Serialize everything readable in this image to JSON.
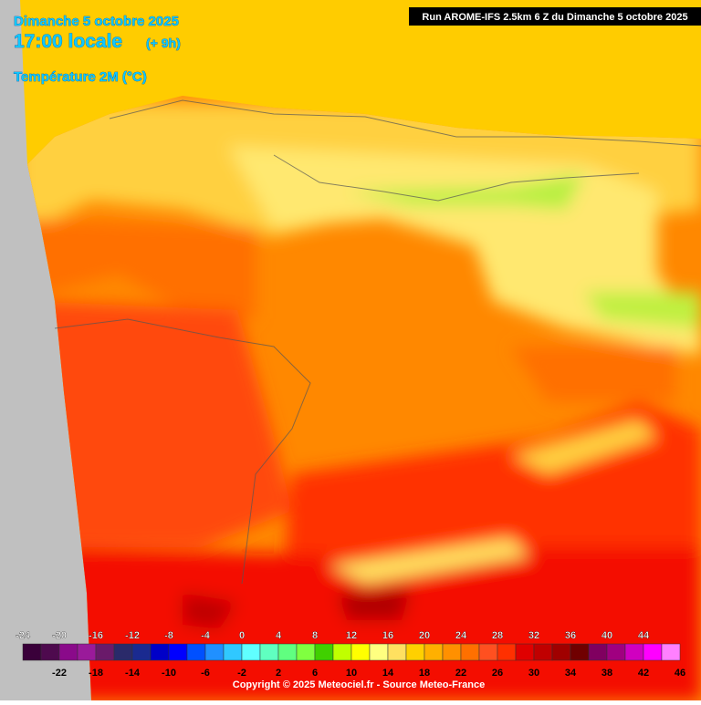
{
  "header": {
    "date": "Dimanche 5 octobre 2025",
    "time": "17:00 locale",
    "offset": "(+ 9h)",
    "parameter": "Température 2M (°C)",
    "run": "Run AROME-IFS 2.5km 6 Z du Dimanche 5 octobre 2025"
  },
  "legend": {
    "labels": [
      -24,
      -22,
      -20,
      -18,
      -16,
      -14,
      -12,
      -10,
      -8,
      -6,
      -4,
      -2,
      0,
      2,
      4,
      6,
      8,
      10,
      12,
      14,
      16,
      18,
      20,
      22,
      24,
      26,
      28,
      30,
      32,
      34,
      36,
      38,
      40,
      42,
      44,
      46
    ],
    "colors": [
      "#3a003a",
      "#4e0a4e",
      "#8a0a8a",
      "#9a1a9a",
      "#6a1a6a",
      "#2a2a6a",
      "#1a2a90",
      "#0000c8",
      "#0000ff",
      "#0050ff",
      "#2090ff",
      "#30c8ff",
      "#60ffff",
      "#60ffc0",
      "#60ff80",
      "#80ff40",
      "#40d000",
      "#c0ff00",
      "#ffff00",
      "#ffff80",
      "#ffe060",
      "#ffd000",
      "#ffb000",
      "#ff9000",
      "#ff7000",
      "#ff5020",
      "#ff3000",
      "#e00000",
      "#c00000",
      "#a00000",
      "#700000",
      "#800060",
      "#a00080",
      "#d000c0",
      "#ff00ff",
      "#ff80ff"
    ]
  },
  "footer": {
    "copyright": "Copyright © 2025 Meteociel.fr - Source Meteo-France"
  }
}
